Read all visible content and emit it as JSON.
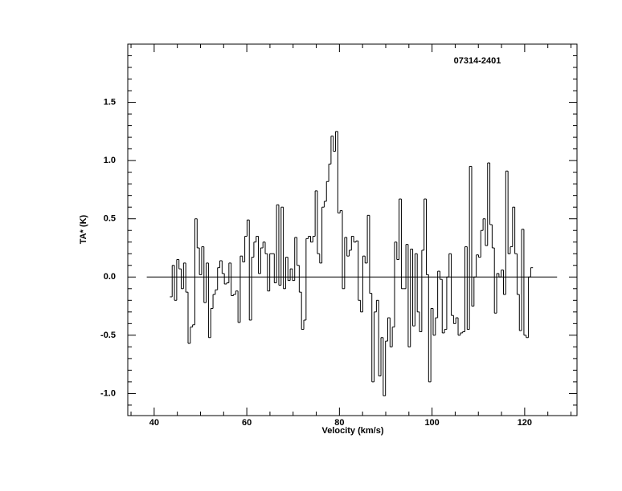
{
  "chart_data": {
    "type": "step",
    "title": "07314-2401",
    "x_label": "Velocity (km/s)",
    "y_label": "TA* (K)",
    "xlim": [
      34.3,
      131.3
    ],
    "ylim": [
      -1.19,
      2.0
    ],
    "xticks": [
      40,
      60,
      80,
      100,
      120
    ],
    "yticks": [
      {
        "value": -1,
        "label": "-1.0"
      },
      -0.5,
      {
        "value": 0,
        "label": "0.0"
      },
      0.5,
      {
        "value": 1,
        "label": "1.0"
      },
      1.5
    ],
    "baseline": {
      "y": 0,
      "x": [
        38.4,
        127
      ]
    },
    "color": "#000000",
    "x": [
      43.64,
      44.13,
      44.62,
      45.11,
      45.6,
      46.09,
      46.58,
      47.07,
      47.56,
      48.05,
      48.54,
      49.03,
      49.52,
      50.01,
      50.5,
      50.99,
      51.48,
      51.97,
      52.46,
      52.95,
      53.44,
      53.93,
      54.42,
      54.91,
      55.4,
      55.89,
      56.38,
      56.87,
      57.36,
      57.85,
      58.34,
      58.83,
      59.32,
      59.81,
      60.3,
      60.79,
      61.28,
      61.77,
      62.26,
      62.75,
      63.24,
      63.73,
      64.22,
      64.71,
      65.2,
      65.69,
      66.18,
      66.67,
      67.16,
      67.65,
      68.14,
      68.63,
      69.12,
      69.61,
      70.1,
      70.59,
      71.08,
      71.57,
      72.06,
      72.55,
      73.04,
      73.53,
      74.02,
      74.51,
      75.0,
      75.49,
      75.98,
      76.47,
      76.96,
      77.45,
      77.94,
      78.43,
      78.92,
      79.41,
      79.9,
      80.39,
      80.88,
      81.37,
      81.86,
      82.35,
      82.84,
      83.33,
      83.82,
      84.31,
      84.8,
      85.29,
      85.78,
      86.27,
      86.76,
      87.25,
      87.74,
      88.23,
      88.72,
      89.21,
      89.7,
      90.19,
      90.68,
      91.17,
      91.66,
      92.15,
      92.64,
      93.13,
      93.62,
      94.11,
      94.6,
      95.09,
      95.58,
      96.07,
      96.56,
      97.05,
      97.54,
      98.03,
      98.52,
      99.01,
      99.5,
      99.99,
      100.48,
      100.97,
      101.46,
      101.95,
      102.44,
      102.93,
      103.42,
      103.91,
      104.4,
      104.89,
      105.38,
      105.87,
      106.36,
      106.85,
      107.34,
      107.83,
      108.32,
      108.81,
      109.3,
      109.79,
      110.28,
      110.77,
      111.26,
      111.75,
      112.24,
      112.73,
      113.22,
      113.71,
      114.2,
      114.69,
      115.18,
      115.67,
      116.16,
      116.65,
      117.14,
      117.63,
      118.12,
      118.61,
      119.1,
      119.59,
      120.08,
      120.57,
      121.06,
      121.55
    ],
    "values": [
      -0.17,
      0.1,
      -0.2,
      0.15,
      0.07,
      -0.1,
      0.12,
      -0.13,
      -0.57,
      -0.43,
      -0.41,
      0.5,
      0.25,
      0.02,
      0.26,
      -0.22,
      0.12,
      -0.52,
      -0.27,
      -0.15,
      -0.11,
      0.08,
      0.14,
      0.03,
      -0.06,
      -0.05,
      0.12,
      -0.16,
      -0.15,
      -0.12,
      -0.39,
      0.18,
      0.13,
      0.35,
      0.49,
      -0.37,
      0.17,
      0.3,
      0.35,
      0.03,
      0.25,
      0.3,
      0.2,
      -0.12,
      0.2,
      0.2,
      -0.05,
      0.62,
      -0.07,
      0.6,
      -0.1,
      0.17,
      -0.03,
      0.07,
      -0.03,
      0.34,
      0.1,
      -0.13,
      -0.45,
      -0.37,
      0.33,
      0.35,
      0.3,
      0.35,
      0.74,
      0.2,
      0.12,
      0.6,
      0.65,
      0.82,
      0.97,
      1.21,
      1.08,
      1.25,
      0.55,
      0.57,
      -0.1,
      0.34,
      0.18,
      0.23,
      0.35,
      0.3,
      0.31,
      -0.2,
      -0.3,
      0.18,
      0.12,
      0.53,
      -0.14,
      -0.9,
      -0.3,
      -0.2,
      -0.85,
      -0.52,
      -1.02,
      -0.55,
      -0.35,
      -0.6,
      -0.43,
      0.3,
      0.15,
      0.67,
      -0.1,
      -0.1,
      0.28,
      -0.6,
      0.24,
      -0.42,
      0.2,
      -0.3,
      -0.47,
      0.23,
      0.67,
      0.02,
      -0.9,
      -0.27,
      -0.5,
      -0.35,
      0.05,
      -0.02,
      -0.48,
      -0.45,
      0.0,
      0.2,
      -0.33,
      -0.4,
      -0.35,
      -0.5,
      -0.48,
      -0.47,
      0.26,
      -0.45,
      0.95,
      -0.25,
      0.0,
      0.19,
      0.17,
      0.4,
      0.5,
      0.27,
      0.98,
      0.45,
      0.25,
      -0.31,
      0.03,
      0.0,
      0.06,
      -0.15,
      0.91,
      0.2,
      0.26,
      0.6,
      0.2,
      -0.15,
      -0.46,
      0.41,
      -0.5,
      -0.52,
      0.0,
      0.08
    ]
  }
}
